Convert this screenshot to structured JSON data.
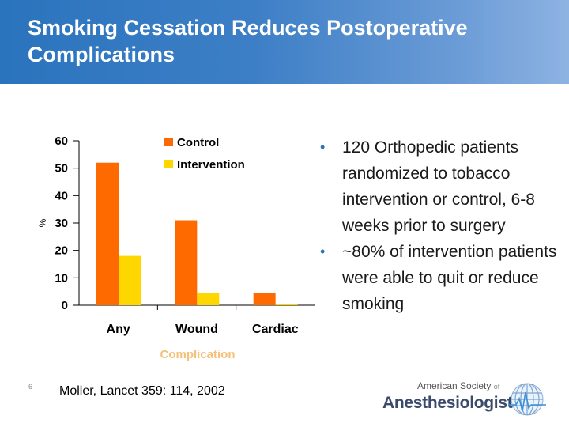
{
  "slide": {
    "title": "Smoking Cessation Reduces Postoperative Complications",
    "slide_number": "6",
    "citation": "Moller, Lancet 359: 114, 2002",
    "bullets": [
      "120 Orthopedic patients randomized to tobacco intervention or control, 6-8 weeks prior to surgery",
      "~80% of intervention patients were able to quit or reduce smoking"
    ],
    "logo": {
      "top_line": "American Society",
      "of_text": "of",
      "main_line": "Anesthesiologists"
    }
  },
  "chart_data": {
    "type": "bar",
    "title": "",
    "xlabel": "Complication",
    "ylabel": "%",
    "ylim": [
      0,
      60
    ],
    "yticks": [
      "0",
      "10",
      "20",
      "30",
      "40",
      "50",
      "60"
    ],
    "categories": [
      "Any",
      "Wound",
      "Cardiac"
    ],
    "series": [
      {
        "name": "Control",
        "values": [
          52,
          31,
          4.5
        ],
        "color": "#ff6a00"
      },
      {
        "name": "Intervention",
        "values": [
          18,
          4.5,
          0.3
        ],
        "color": "#ffd700"
      }
    ],
    "legend_position": "top-right",
    "grid": false
  }
}
